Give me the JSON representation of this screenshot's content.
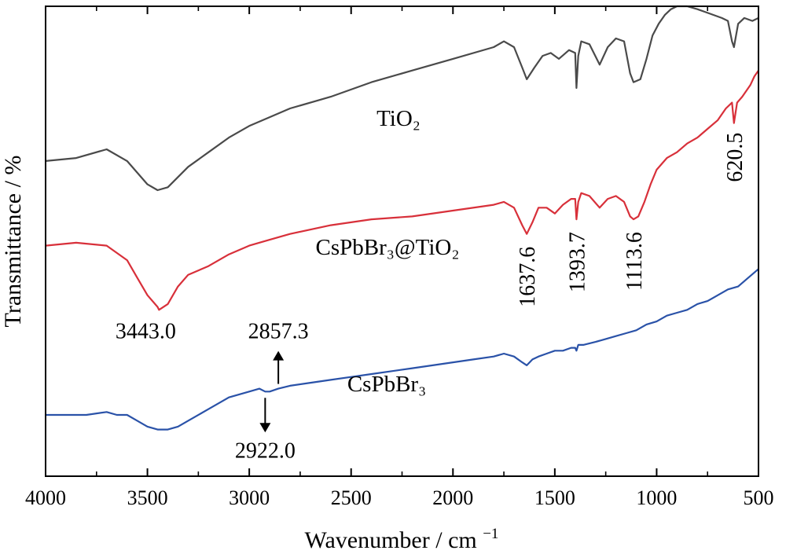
{
  "chart_data": {
    "type": "line",
    "xlabel": "Wavenumber / cm",
    "xlabel_sup": "−1",
    "ylabel": "Transmittance / %",
    "xlim": [
      4000,
      500
    ],
    "x_reversed": true,
    "xticks": [
      4000,
      3500,
      3000,
      2500,
      2000,
      1500,
      1000,
      500
    ],
    "y_tick_labels": false,
    "grid": false,
    "series": [
      {
        "name": "TiO₂",
        "color": "#4a4a4a",
        "x": [
          4000,
          3850,
          3700,
          3600,
          3500,
          3450,
          3400,
          3300,
          3200,
          3100,
          3000,
          2900,
          2800,
          2600,
          2400,
          2200,
          2000,
          1800,
          1750,
          1700,
          1660,
          1637.6,
          1600,
          1560,
          1520,
          1480,
          1430,
          1400,
          1393.7,
          1385,
          1370,
          1330,
          1280,
          1240,
          1200,
          1160,
          1130,
          1113.6,
          1080,
          1050,
          1020,
          990,
          960,
          930,
          900,
          850,
          800,
          760,
          720,
          680,
          650,
          630,
          620.5,
          600,
          570,
          530,
          500
        ],
        "y": [
          44,
          45,
          48,
          44,
          36,
          34,
          35,
          42,
          47,
          52,
          56,
          59,
          62,
          66,
          71,
          75,
          79,
          83,
          85,
          83,
          76,
          72,
          76,
          80,
          81,
          79,
          82,
          81,
          69,
          80,
          85,
          84,
          77,
          83,
          86,
          85,
          74,
          71,
          72,
          79,
          87,
          91,
          94,
          96,
          97,
          97,
          96,
          95,
          94,
          93,
          92,
          85,
          83,
          91,
          93,
          92,
          93
        ]
      },
      {
        "name": "CsPbBr₃@TiO₂",
        "color": "#d8303a",
        "x": [
          4000,
          3850,
          3700,
          3600,
          3550,
          3500,
          3450,
          3443.0,
          3400,
          3350,
          3300,
          3200,
          3100,
          3000,
          2900,
          2800,
          2600,
          2400,
          2200,
          2000,
          1800,
          1750,
          1700,
          1660,
          1637.6,
          1610,
          1580,
          1540,
          1500,
          1460,
          1420,
          1400,
          1393.7,
          1385,
          1370,
          1330,
          1280,
          1240,
          1200,
          1160,
          1130,
          1113.6,
          1090,
          1060,
          1030,
          1000,
          950,
          900,
          850,
          800,
          750,
          700,
          660,
          630,
          620.5,
          605,
          580,
          540,
          520,
          500
        ],
        "y": [
          15,
          16,
          15,
          10,
          4,
          -2,
          -6,
          -7,
          -5,
          1,
          5,
          8,
          12,
          15,
          17,
          19,
          22,
          24,
          25,
          27,
          29,
          30,
          28,
          22,
          19,
          23,
          28,
          28,
          26,
          29,
          31,
          31,
          24,
          30,
          33,
          32,
          28,
          31,
          32,
          30,
          25,
          24,
          25,
          30,
          36,
          41,
          45,
          47,
          50,
          52,
          55,
          58,
          62,
          64,
          57,
          64,
          66,
          70,
          73,
          75
        ]
      },
      {
        "name": "CsPbBr₃",
        "color": "#2a52a8",
        "x": [
          4000,
          3900,
          3800,
          3700,
          3650,
          3600,
          3550,
          3500,
          3450,
          3400,
          3350,
          3300,
          3200,
          3100,
          3000,
          2950,
          2922.0,
          2900,
          2857.3,
          2800,
          2700,
          2600,
          2500,
          2400,
          2300,
          2200,
          2100,
          2000,
          1900,
          1800,
          1750,
          1700,
          1660,
          1637.6,
          1610,
          1580,
          1540,
          1500,
          1460,
          1420,
          1400,
          1393.7,
          1385,
          1360,
          1300,
          1250,
          1200,
          1150,
          1100,
          1050,
          1000,
          950,
          900,
          850,
          800,
          750,
          700,
          650,
          600,
          550,
          500
        ],
        "y": [
          -43,
          -43,
          -43,
          -42,
          -43,
          -43,
          -45,
          -47,
          -48,
          -48,
          -47,
          -45,
          -41,
          -37,
          -35,
          -34,
          -35,
          -35,
          -34,
          -33,
          -32,
          -31,
          -30,
          -29,
          -28,
          -27,
          -26,
          -25,
          -24,
          -23,
          -22,
          -23,
          -25,
          -26,
          -24,
          -23,
          -22,
          -21,
          -21,
          -20,
          -20,
          -21,
          -19,
          -19,
          -18,
          -17,
          -16,
          -15,
          -14,
          -12,
          -11,
          -9,
          -8,
          -7,
          -5,
          -4,
          -2,
          0,
          1,
          4,
          7
        ]
      }
    ],
    "annotations": [
      {
        "text": "3443.0",
        "x": 3443.0,
        "target_series": 1,
        "style": "below"
      },
      {
        "text": "1637.6",
        "x": 1637.6,
        "target_series": 1,
        "style": "vertical"
      },
      {
        "text": "1393.7",
        "x": 1393.7,
        "target_series": 1,
        "style": "vertical"
      },
      {
        "text": "1113.6",
        "x": 1113.6,
        "target_series": 1,
        "style": "vertical"
      },
      {
        "text": "620.5",
        "x": 620.5,
        "target_series": 1,
        "style": "vertical"
      },
      {
        "text": "2857.3",
        "x": 2857.3,
        "target_series": 2,
        "style": "arrow-up"
      },
      {
        "text": "2922.0",
        "x": 2922.0,
        "target_series": 2,
        "style": "arrow-down"
      }
    ]
  }
}
